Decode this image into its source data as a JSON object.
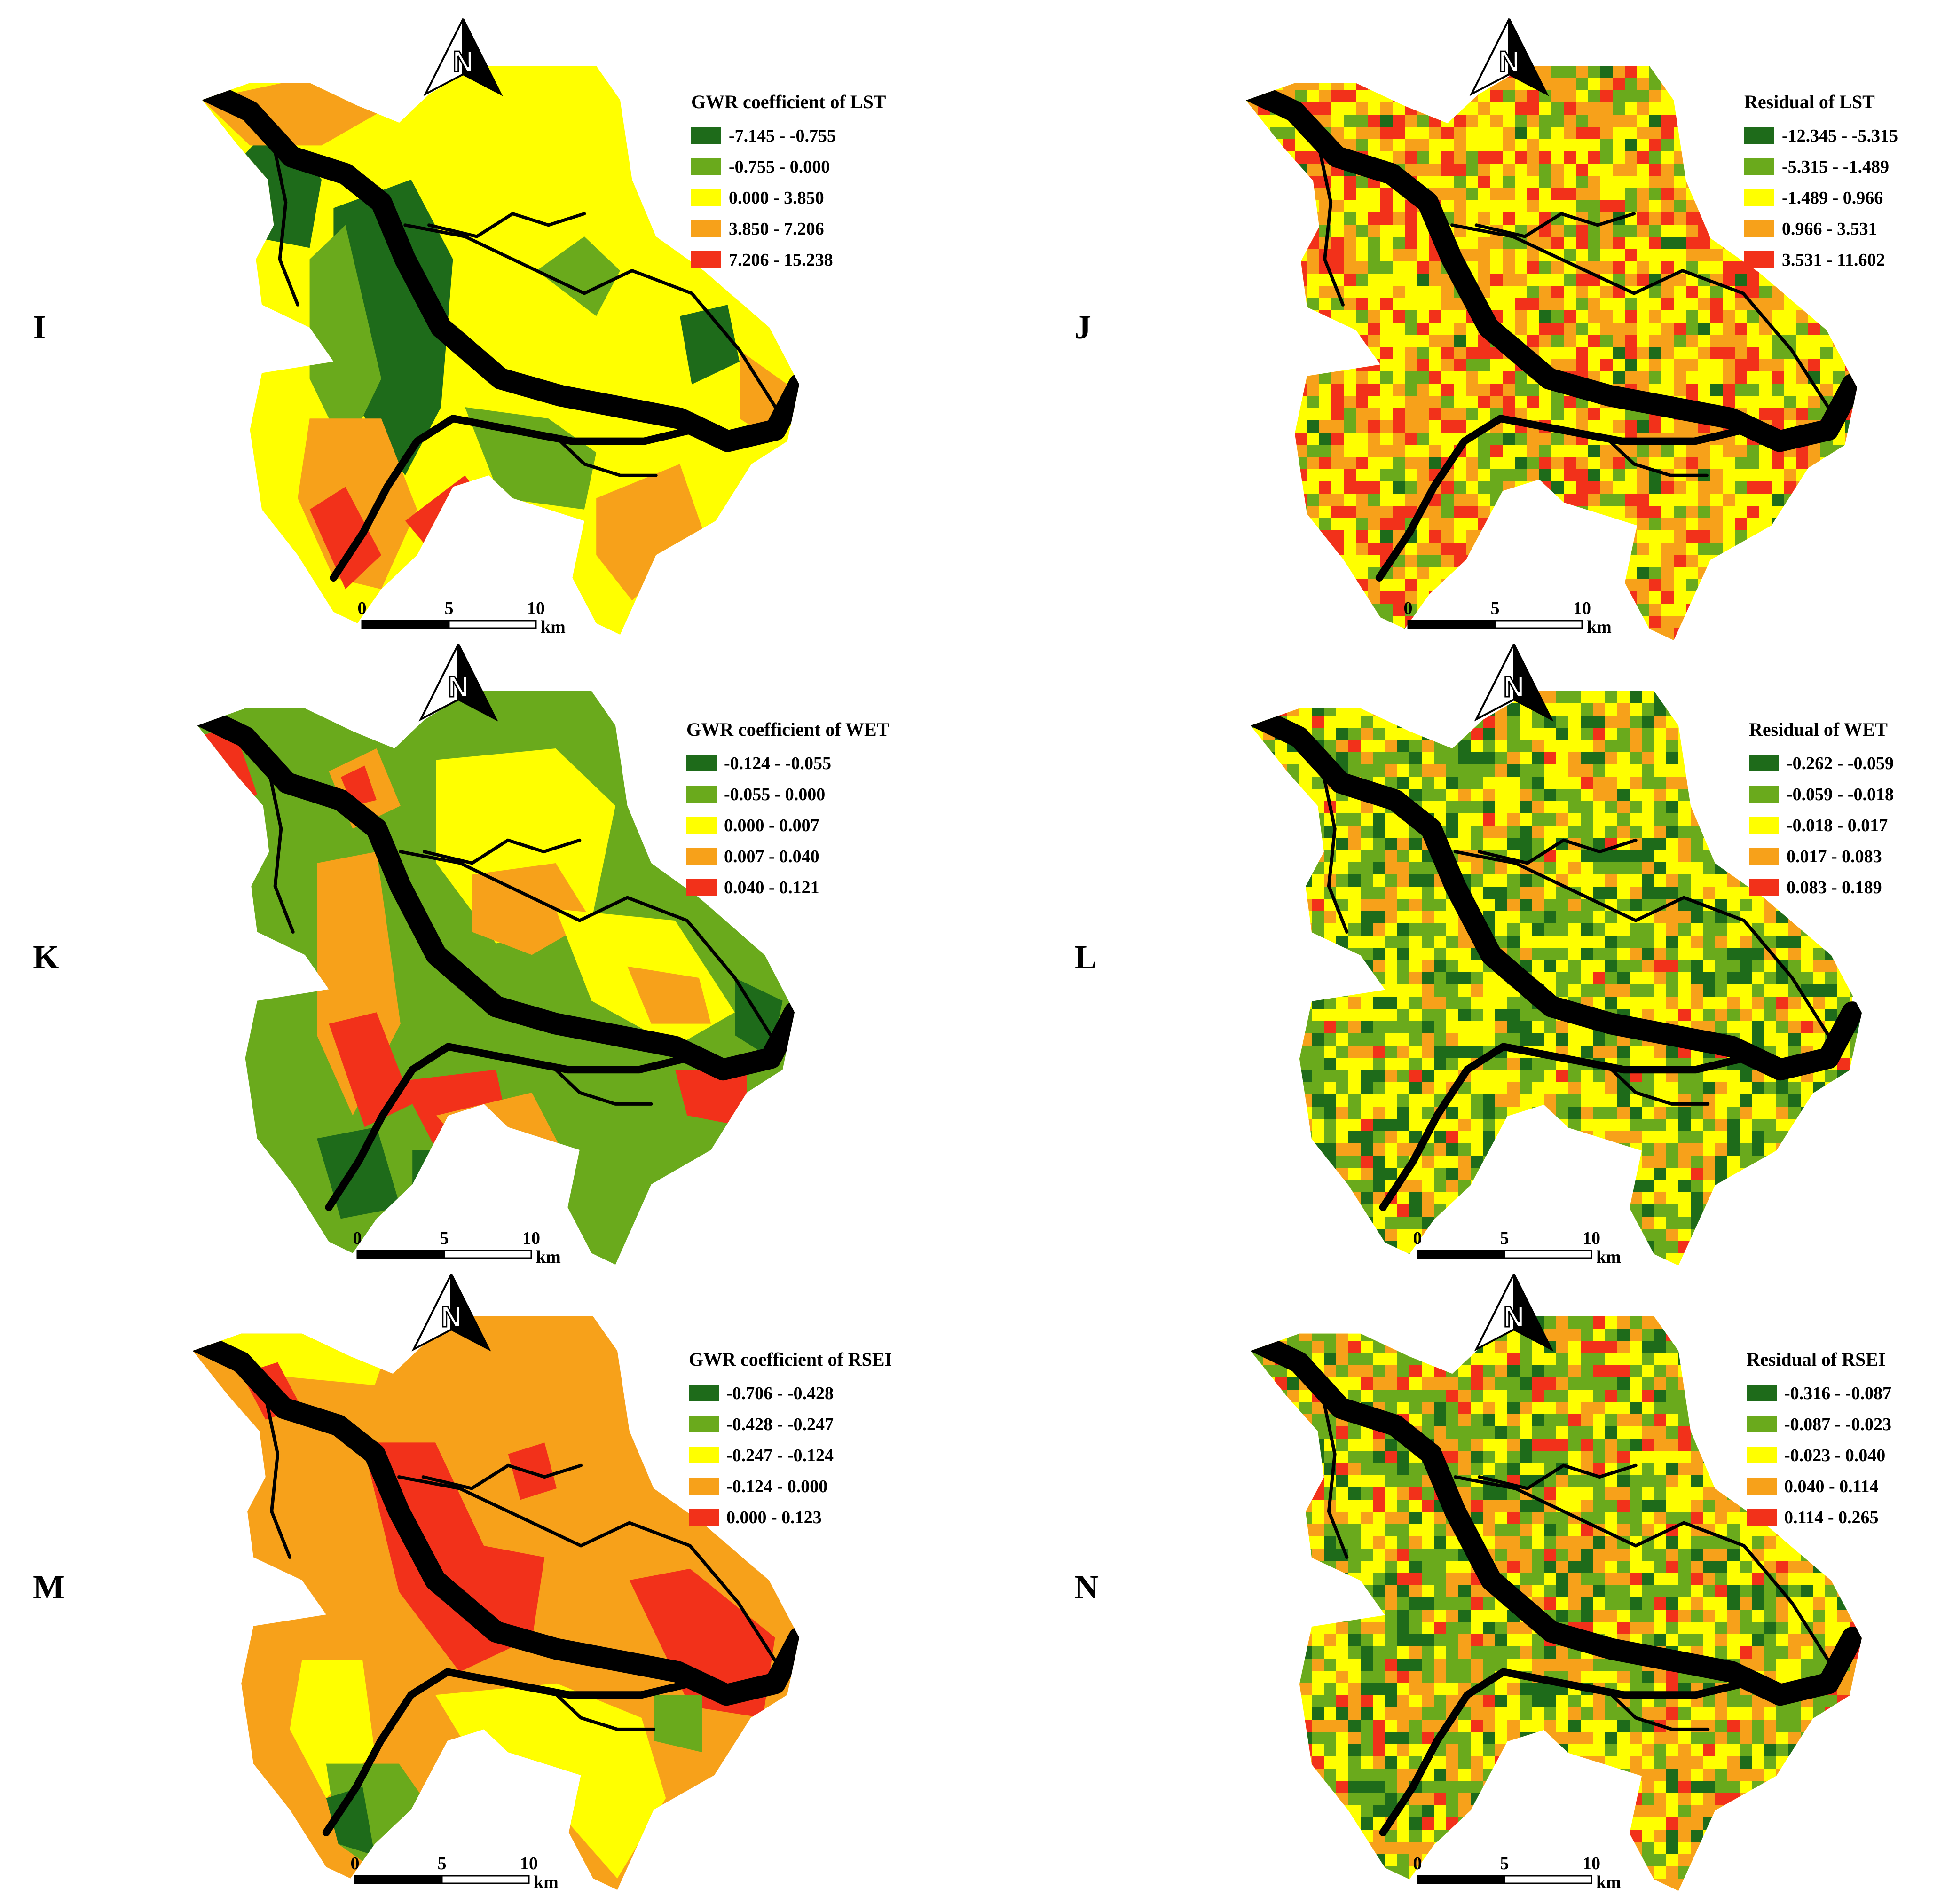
{
  "colors": {
    "dark_green": "#1e6b1a",
    "light_green": "#6aaa1c",
    "yellow": "#ffff00",
    "orange": "#f7a11a",
    "red": "#f2311a",
    "river": "#000000"
  },
  "scale_bar": {
    "ticks": [
      "0",
      "5",
      "10"
    ],
    "unit": "km"
  },
  "north_arrow": {
    "label": "N",
    "icon": "north-arrow-icon"
  },
  "panels": [
    {
      "letter": "I",
      "legend_title": "GWR coefficient of LST",
      "classes": [
        "-7.145 - -0.755",
        "-0.755 - 0.000",
        "0.000 - 3.850",
        "3.850 - 7.206",
        "7.206 - 15.238"
      ],
      "style": "smooth",
      "base_color": "yellow",
      "zones": [
        {
          "color": "dark_green",
          "points": [
            [
              0.05,
              0.18
            ],
            [
              0.12,
              0.1
            ],
            [
              0.2,
              0.2
            ],
            [
              0.18,
              0.32
            ],
            [
              0.08,
              0.3
            ]
          ]
        },
        {
          "color": "dark_green",
          "points": [
            [
              0.22,
              0.25
            ],
            [
              0.35,
              0.2
            ],
            [
              0.42,
              0.34
            ],
            [
              0.4,
              0.6
            ],
            [
              0.34,
              0.72
            ],
            [
              0.26,
              0.6
            ],
            [
              0.22,
              0.4
            ]
          ]
        },
        {
          "color": "light_green",
          "points": [
            [
              0.18,
              0.34
            ],
            [
              0.24,
              0.28
            ],
            [
              0.3,
              0.55
            ],
            [
              0.24,
              0.68
            ],
            [
              0.18,
              0.55
            ]
          ]
        },
        {
          "color": "light_green",
          "points": [
            [
              0.44,
              0.6
            ],
            [
              0.58,
              0.62
            ],
            [
              0.66,
              0.68
            ],
            [
              0.64,
              0.78
            ],
            [
              0.5,
              0.76
            ]
          ]
        },
        {
          "color": "light_green",
          "points": [
            [
              0.56,
              0.36
            ],
            [
              0.64,
              0.3
            ],
            [
              0.7,
              0.36
            ],
            [
              0.66,
              0.44
            ]
          ]
        },
        {
          "color": "dark_green",
          "points": [
            [
              0.8,
              0.44
            ],
            [
              0.88,
              0.42
            ],
            [
              0.9,
              0.52
            ],
            [
              0.82,
              0.56
            ]
          ]
        },
        {
          "color": "orange",
          "points": [
            [
              0.0,
              0.06
            ],
            [
              0.18,
              0.02
            ],
            [
              0.3,
              0.08
            ],
            [
              0.2,
              0.14
            ],
            [
              0.08,
              0.14
            ]
          ]
        },
        {
          "color": "orange",
          "points": [
            [
              0.18,
              0.62
            ],
            [
              0.3,
              0.62
            ],
            [
              0.36,
              0.78
            ],
            [
              0.3,
              0.92
            ],
            [
              0.22,
              0.9
            ],
            [
              0.16,
              0.76
            ]
          ]
        },
        {
          "color": "red",
          "points": [
            [
              0.18,
              0.78
            ],
            [
              0.24,
              0.74
            ],
            [
              0.3,
              0.86
            ],
            [
              0.24,
              0.92
            ]
          ]
        },
        {
          "color": "red",
          "points": [
            [
              0.34,
              0.8
            ],
            [
              0.44,
              0.72
            ],
            [
              0.5,
              0.8
            ],
            [
              0.42,
              0.9
            ]
          ]
        },
        {
          "color": "orange",
          "points": [
            [
              0.66,
              0.76
            ],
            [
              0.8,
              0.7
            ],
            [
              0.84,
              0.82
            ],
            [
              0.72,
              0.94
            ],
            [
              0.66,
              0.86
            ]
          ]
        },
        {
          "color": "orange",
          "points": [
            [
              0.9,
              0.5
            ],
            [
              0.98,
              0.56
            ],
            [
              0.96,
              0.66
            ],
            [
              0.9,
              0.62
            ]
          ]
        }
      ]
    },
    {
      "letter": "J",
      "legend_title": "Residual of LST",
      "classes": [
        "-12.345 - -5.315",
        "-5.315 - -1.489",
        "-1.489 - 0.966",
        "0.966 - 3.531",
        "3.531 - 11.602"
      ],
      "style": "pixel",
      "weights": [
        0.03,
        0.14,
        0.36,
        0.27,
        0.2
      ]
    },
    {
      "letter": "K",
      "legend_title": "GWR coefficient of WET",
      "classes": [
        "-0.124 - -0.055",
        "-0.055 - 0.000",
        "0.000 - 0.007",
        "0.007 - 0.040",
        "0.040 - 0.121"
      ],
      "style": "smooth",
      "base_color": "light_green",
      "zones": [
        {
          "color": "red",
          "points": [
            [
              0.0,
              0.08
            ],
            [
              0.06,
              0.06
            ],
            [
              0.1,
              0.18
            ],
            [
              0.04,
              0.22
            ]
          ]
        },
        {
          "color": "orange",
          "points": [
            [
              0.22,
              0.14
            ],
            [
              0.3,
              0.1
            ],
            [
              0.34,
              0.2
            ],
            [
              0.26,
              0.24
            ]
          ]
        },
        {
          "color": "red",
          "points": [
            [
              0.24,
              0.15
            ],
            [
              0.28,
              0.13
            ],
            [
              0.3,
              0.19
            ],
            [
              0.26,
              0.2
            ]
          ]
        },
        {
          "color": "yellow",
          "points": [
            [
              0.4,
              0.12
            ],
            [
              0.6,
              0.1
            ],
            [
              0.7,
              0.2
            ],
            [
              0.66,
              0.4
            ],
            [
              0.5,
              0.44
            ],
            [
              0.4,
              0.3
            ]
          ]
        },
        {
          "color": "orange",
          "points": [
            [
              0.46,
              0.32
            ],
            [
              0.6,
              0.3
            ],
            [
              0.66,
              0.4
            ],
            [
              0.56,
              0.46
            ],
            [
              0.46,
              0.42
            ]
          ]
        },
        {
          "color": "yellow",
          "points": [
            [
              0.6,
              0.38
            ],
            [
              0.8,
              0.4
            ],
            [
              0.9,
              0.56
            ],
            [
              0.8,
              0.62
            ],
            [
              0.66,
              0.54
            ]
          ]
        },
        {
          "color": "orange",
          "points": [
            [
              0.72,
              0.48
            ],
            [
              0.84,
              0.5
            ],
            [
              0.86,
              0.58
            ],
            [
              0.76,
              0.58
            ]
          ]
        },
        {
          "color": "orange",
          "points": [
            [
              0.2,
              0.3
            ],
            [
              0.3,
              0.28
            ],
            [
              0.34,
              0.58
            ],
            [
              0.26,
              0.74
            ],
            [
              0.2,
              0.6
            ]
          ]
        },
        {
          "color": "red",
          "points": [
            [
              0.22,
              0.58
            ],
            [
              0.3,
              0.56
            ],
            [
              0.36,
              0.72
            ],
            [
              0.28,
              0.76
            ]
          ]
        },
        {
          "color": "red",
          "points": [
            [
              0.34,
              0.68
            ],
            [
              0.5,
              0.66
            ],
            [
              0.52,
              0.76
            ],
            [
              0.4,
              0.8
            ]
          ]
        },
        {
          "color": "orange",
          "points": [
            [
              0.4,
              0.74
            ],
            [
              0.56,
              0.7
            ],
            [
              0.62,
              0.82
            ],
            [
              0.5,
              0.86
            ]
          ]
        },
        {
          "color": "red",
          "points": [
            [
              0.8,
              0.66
            ],
            [
              0.92,
              0.66
            ],
            [
              0.92,
              0.76
            ],
            [
              0.82,
              0.74
            ]
          ]
        },
        {
          "color": "dark_green",
          "points": [
            [
              0.9,
              0.5
            ],
            [
              0.98,
              0.54
            ],
            [
              0.96,
              0.64
            ],
            [
              0.9,
              0.6
            ]
          ]
        },
        {
          "color": "dark_green",
          "points": [
            [
              0.2,
              0.78
            ],
            [
              0.3,
              0.76
            ],
            [
              0.34,
              0.9
            ],
            [
              0.24,
              0.92
            ]
          ]
        },
        {
          "color": "dark_green",
          "points": [
            [
              0.36,
              0.8
            ],
            [
              0.44,
              0.8
            ],
            [
              0.44,
              0.92
            ],
            [
              0.36,
              0.94
            ]
          ]
        }
      ]
    },
    {
      "letter": "L",
      "legend_title": "Residual of WET",
      "classes": [
        "-0.262 - -0.059",
        "-0.059 - -0.018",
        "-0.018 - 0.017",
        "0.017 - 0.083",
        "0.083 - 0.189"
      ],
      "style": "pixel",
      "weights": [
        0.16,
        0.3,
        0.36,
        0.16,
        0.02
      ]
    },
    {
      "letter": "M",
      "legend_title": "GWR coefficient of RSEI",
      "classes": [
        "-0.706 - -0.428",
        "-0.428 - -0.247",
        "-0.247 - -0.124",
        "-0.124 - 0.000",
        "0.000 - 0.123"
      ],
      "style": "smooth",
      "base_color": "orange",
      "zones": [
        {
          "color": "yellow",
          "points": [
            [
              0.0,
              0.04
            ],
            [
              0.12,
              0.0
            ],
            [
              0.32,
              0.06
            ],
            [
              0.3,
              0.12
            ],
            [
              0.1,
              0.1
            ]
          ]
        },
        {
          "color": "red",
          "points": [
            [
              0.08,
              0.1
            ],
            [
              0.14,
              0.08
            ],
            [
              0.18,
              0.16
            ],
            [
              0.12,
              0.18
            ]
          ]
        },
        {
          "color": "red",
          "points": [
            [
              0.28,
              0.22
            ],
            [
              0.4,
              0.22
            ],
            [
              0.48,
              0.4
            ],
            [
              0.58,
              0.42
            ],
            [
              0.56,
              0.56
            ],
            [
              0.44,
              0.62
            ],
            [
              0.34,
              0.48
            ]
          ]
        },
        {
          "color": "red",
          "points": [
            [
              0.52,
              0.24
            ],
            [
              0.58,
              0.22
            ],
            [
              0.6,
              0.3
            ],
            [
              0.54,
              0.32
            ]
          ]
        },
        {
          "color": "red",
          "points": [
            [
              0.72,
              0.46
            ],
            [
              0.82,
              0.44
            ],
            [
              0.96,
              0.56
            ],
            [
              0.94,
              0.7
            ],
            [
              0.82,
              0.68
            ]
          ]
        },
        {
          "color": "yellow",
          "points": [
            [
              0.18,
              0.6
            ],
            [
              0.28,
              0.6
            ],
            [
              0.3,
              0.76
            ],
            [
              0.22,
              0.84
            ],
            [
              0.16,
              0.72
            ]
          ]
        },
        {
          "color": "yellow",
          "points": [
            [
              0.4,
              0.66
            ],
            [
              0.6,
              0.64
            ],
            [
              0.74,
              0.7
            ],
            [
              0.78,
              0.84
            ],
            [
              0.7,
              0.98
            ],
            [
              0.6,
              0.86
            ],
            [
              0.48,
              0.8
            ]
          ]
        },
        {
          "color": "light_green",
          "points": [
            [
              0.22,
              0.78
            ],
            [
              0.34,
              0.78
            ],
            [
              0.42,
              0.9
            ],
            [
              0.32,
              0.98
            ],
            [
              0.24,
              0.92
            ]
          ]
        },
        {
          "color": "dark_green",
          "points": [
            [
              0.22,
              0.84
            ],
            [
              0.28,
              0.82
            ],
            [
              0.3,
              0.94
            ],
            [
              0.24,
              0.92
            ]
          ]
        },
        {
          "color": "light_green",
          "points": [
            [
              0.76,
              0.66
            ],
            [
              0.84,
              0.66
            ],
            [
              0.84,
              0.76
            ],
            [
              0.76,
              0.74
            ]
          ]
        }
      ]
    },
    {
      "letter": "N",
      "legend_title": "Residual of RSEI",
      "classes": [
        "-0.316 - -0.087",
        "-0.087 - -0.023",
        "-0.023 - 0.040",
        "0.040 - 0.114",
        "0.114 - 0.265"
      ],
      "style": "pixel",
      "weights": [
        0.12,
        0.3,
        0.24,
        0.26,
        0.08
      ]
    }
  ]
}
